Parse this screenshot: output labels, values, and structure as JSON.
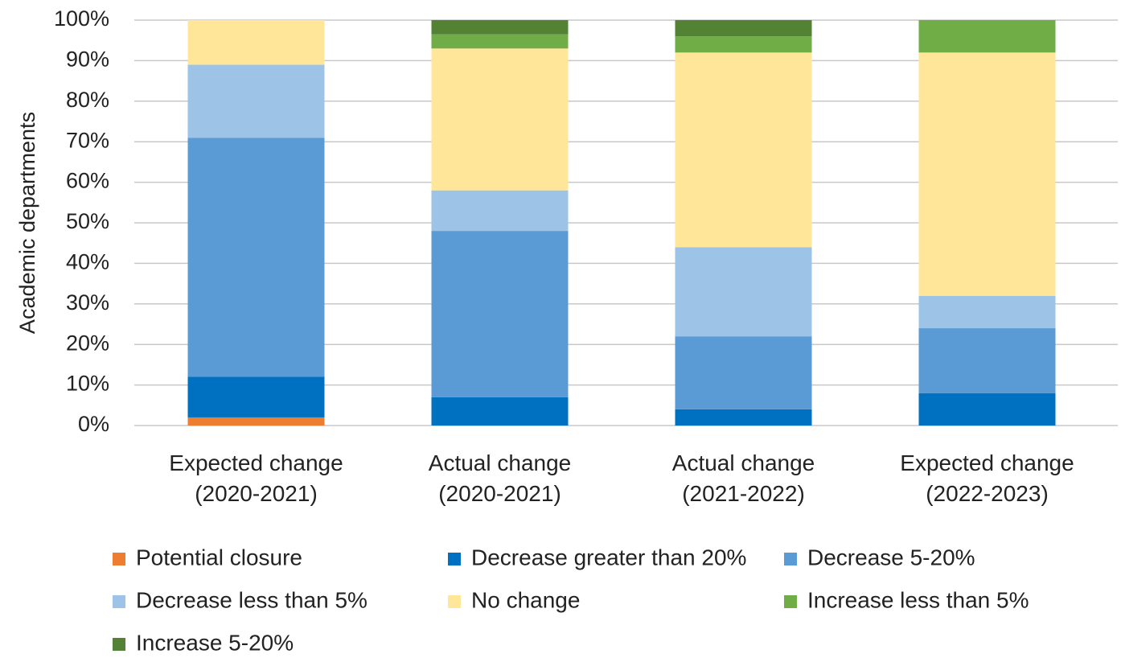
{
  "chart_data": {
    "type": "stacked_bar",
    "y_label": "Academic departments",
    "categories": [
      "Expected change\n(2020-2021)",
      "Actual change\n(2020-2021)",
      "Actual change\n(2021-2022)",
      "Expected change\n(2022-2023)"
    ],
    "series": [
      {
        "name": "Potential closure",
        "color": "#ed7d31",
        "values": [
          2,
          0,
          0,
          0
        ]
      },
      {
        "name": "Decrease greater than 20%",
        "color": "#0070c0",
        "values": [
          10,
          7,
          4,
          8
        ]
      },
      {
        "name": "Decrease 5-20%",
        "color": "#5b9bd5",
        "values": [
          59,
          41,
          18,
          16
        ]
      },
      {
        "name": "Decrease less than 5%",
        "color": "#9dc3e6",
        "values": [
          18,
          10,
          22,
          8
        ]
      },
      {
        "name": "No change",
        "color": "#ffe699",
        "values": [
          11,
          35,
          48,
          60
        ]
      },
      {
        "name": "Increase less than 5%",
        "color": "#70ad47",
        "values": [
          0,
          3.5,
          4,
          8
        ]
      },
      {
        "name": "Increase 5-20%",
        "color": "#548235",
        "values": [
          0,
          3.5,
          4,
          0
        ]
      }
    ],
    "ylim": [
      0,
      100
    ],
    "yticks": [
      {
        "value": 0,
        "label": "0%"
      },
      {
        "value": 10,
        "label": "10%"
      },
      {
        "value": 20,
        "label": "20%"
      },
      {
        "value": 30,
        "label": "30%"
      },
      {
        "value": 40,
        "label": "40%"
      },
      {
        "value": 50,
        "label": "50%"
      },
      {
        "value": 60,
        "label": "60%"
      },
      {
        "value": 70,
        "label": "70%"
      },
      {
        "value": 80,
        "label": "80%"
      },
      {
        "value": 90,
        "label": "90%"
      },
      {
        "value": 100,
        "label": "100%"
      }
    ],
    "grid": true,
    "legend": "bottom"
  }
}
